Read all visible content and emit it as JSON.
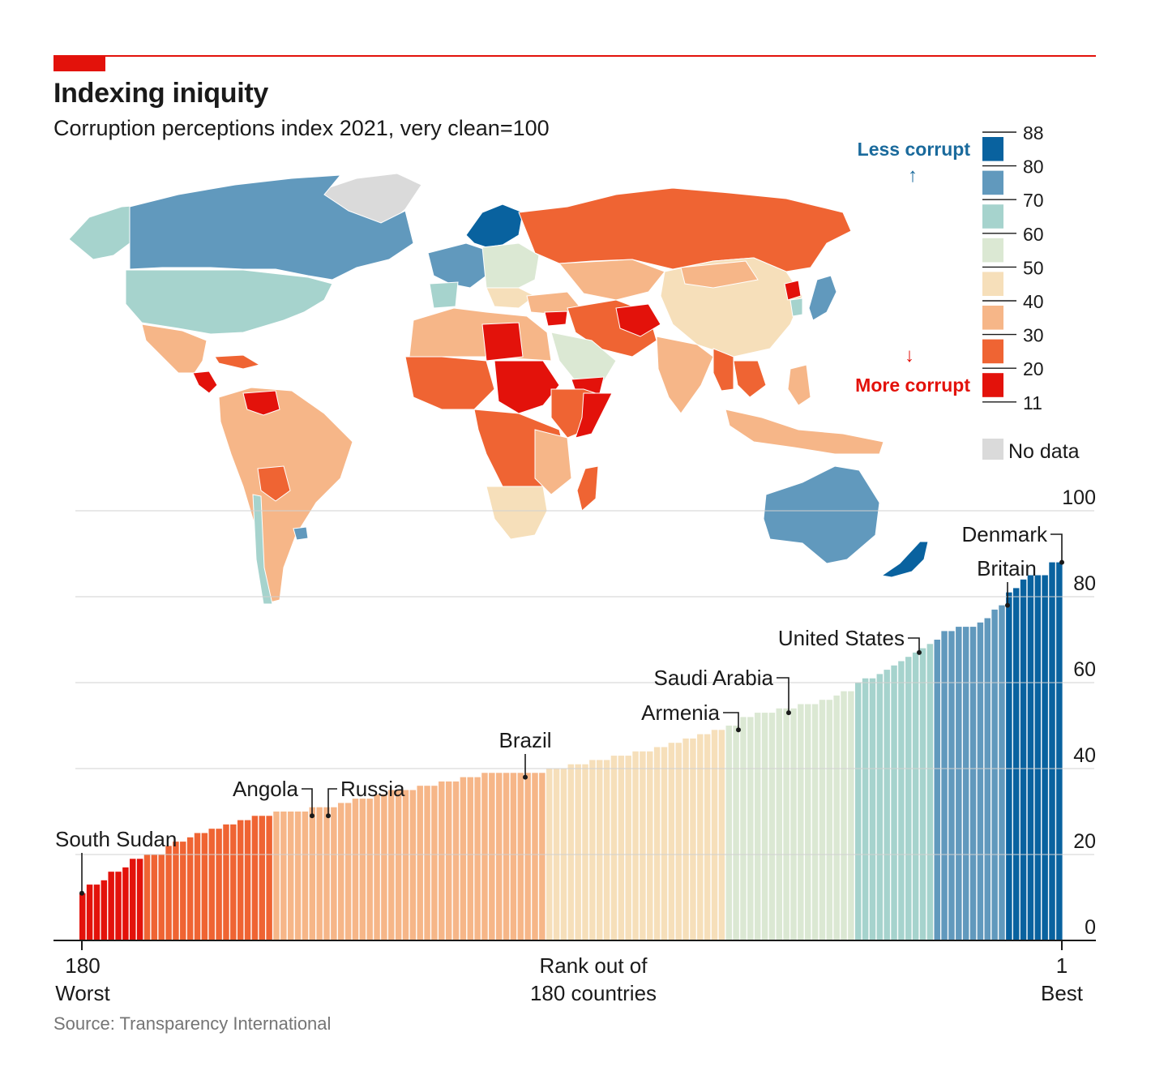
{
  "header": {
    "title": "Indexing iniquity",
    "subtitle": "Corruption perceptions index 2021, very clean=100"
  },
  "source": "Source: Transparency International",
  "legend": {
    "less_label": "Less corrupt",
    "more_label": "More corrupt",
    "up_arrow": "↑",
    "down_arrow": "↓",
    "no_data_label": "No data",
    "no_data_color": "#dadada",
    "less_color": "#1a6a9c",
    "more_color": "#e3120b",
    "ticks": [
      "88",
      "80",
      "70",
      "60",
      "50",
      "40",
      "30",
      "20",
      "11"
    ],
    "bins": [
      {
        "range": "80-88",
        "color": "#09629f"
      },
      {
        "range": "70-80",
        "color": "#6199bd"
      },
      {
        "range": "60-70",
        "color": "#a6d3cd"
      },
      {
        "range": "50-60",
        "color": "#dbe8d3"
      },
      {
        "range": "40-50",
        "color": "#f6dfba"
      },
      {
        "range": "30-40",
        "color": "#f6b688"
      },
      {
        "range": "20-30",
        "color": "#ef6433"
      },
      {
        "range": "11-20",
        "color": "#e3120b"
      }
    ]
  },
  "map": {
    "description_colors": {
      "north_america_canada": "#6199bd",
      "usa": "#a6d3cd",
      "greenland": "#a6d3cd",
      "russia": "#ef6433",
      "china": "#f6dfba",
      "australia": "#6199bd",
      "new_zealand": "#09629f",
      "scandinavia": "#09629f",
      "brazil": "#f6b688",
      "arctic_no_data": "#dadada"
    }
  },
  "chart_data": {
    "type": "bar",
    "title": "Corruption perceptions index 2021, very clean=100",
    "xlabel": "Rank out of 180 countries",
    "ylabel": "",
    "x_left_label": "180",
    "x_left_sub": "Worst",
    "x_right_label": "1",
    "x_right_sub": "Best",
    "x_center_label_1": "Rank out of",
    "x_center_label_2": "180 countries",
    "ylim": [
      0,
      100
    ],
    "yticks": [
      "0",
      "20",
      "40",
      "60",
      "80",
      "100"
    ],
    "order": "rank 180 (left) to rank 1 (right)",
    "values": [
      11,
      13,
      13,
      14,
      16,
      16,
      17,
      19,
      19,
      20,
      20,
      20,
      22,
      23,
      23,
      24,
      25,
      25,
      26,
      26,
      27,
      27,
      28,
      28,
      29,
      29,
      29,
      30,
      30,
      30,
      30,
      30,
      31,
      31,
      31,
      31,
      32,
      32,
      33,
      33,
      33,
      34,
      34,
      35,
      35,
      35,
      35,
      36,
      36,
      36,
      37,
      37,
      37,
      38,
      38,
      38,
      39,
      39,
      39,
      39,
      39,
      39,
      39,
      39,
      39,
      40,
      40,
      40,
      41,
      41,
      41,
      42,
      42,
      42,
      43,
      43,
      43,
      44,
      44,
      44,
      45,
      45,
      46,
      46,
      47,
      47,
      48,
      48,
      49,
      49,
      50,
      50,
      52,
      52,
      53,
      53,
      53,
      54,
      54,
      54,
      55,
      55,
      55,
      56,
      56,
      57,
      58,
      58,
      60,
      61,
      61,
      62,
      63,
      64,
      65,
      66,
      67,
      68,
      69,
      70,
      72,
      72,
      73,
      73,
      73,
      74,
      75,
      77,
      78,
      81,
      82,
      84,
      85,
      85,
      85,
      88,
      88
    ],
    "annotations": [
      {
        "label": "South Sudan",
        "rank": 180,
        "value": 11
      },
      {
        "label": "Angola",
        "rank": 136,
        "value": 29
      },
      {
        "label": "Russia",
        "rank": 136,
        "value": 29
      },
      {
        "label": "Brazil",
        "rank": 96,
        "value": 38
      },
      {
        "label": "Armenia",
        "rank": 58,
        "value": 49
      },
      {
        "label": "Saudi Arabia",
        "rank": 52,
        "value": 53
      },
      {
        "label": "United States",
        "rank": 27,
        "value": 67
      },
      {
        "label": "Britain",
        "rank": 11,
        "value": 78
      },
      {
        "label": "Denmark",
        "rank": 1,
        "value": 88
      }
    ]
  }
}
